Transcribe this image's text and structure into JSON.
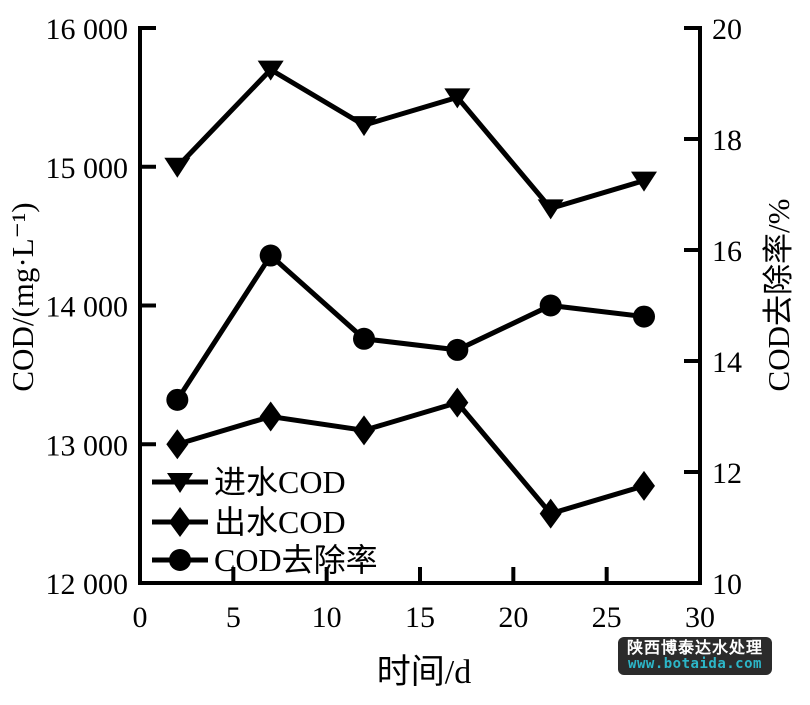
{
  "watermark": {
    "line1": "陕西博泰达水处理",
    "line2": "www.botaida.com",
    "bg_color": "#2b2b2b",
    "text_color": "#ffffff",
    "url_color": "#2cb6c8"
  },
  "chart_data": {
    "type": "line",
    "x": [
      2,
      7,
      12,
      17,
      22,
      27
    ],
    "series": [
      {
        "name": "进水COD",
        "axis": "left",
        "marker": "triangle-down",
        "values": [
          15000,
          15700,
          15300,
          15500,
          14700,
          14900
        ]
      },
      {
        "name": "出水COD",
        "axis": "left",
        "marker": "diamond",
        "values": [
          13000,
          13200,
          13100,
          13300,
          12500,
          12700
        ]
      },
      {
        "name": "COD去除率",
        "axis": "right",
        "marker": "circle",
        "values": [
          13.3,
          15.9,
          14.4,
          14.2,
          15.0,
          14.8
        ]
      }
    ],
    "xlabel": "时间/d",
    "ylabel_left": "COD/(mg·L⁻¹)",
    "ylabel_right": "COD去除率/%",
    "xlim": [
      0,
      30
    ],
    "x_ticks": [
      0,
      5,
      10,
      15,
      20,
      25,
      30
    ],
    "x_tick_labels": [
      "0",
      "5",
      "10",
      "15",
      "20",
      "25",
      "30"
    ],
    "ylim_left": [
      12000,
      16000
    ],
    "left_ticks": [
      16000,
      15000,
      14000,
      13000,
      12000
    ],
    "left_tick_labels": [
      "16 000",
      "15 000",
      "14 000",
      "13 000",
      "12 000"
    ],
    "ylim_right": [
      10,
      20
    ],
    "right_ticks": [
      20,
      18,
      16,
      14,
      12,
      10
    ],
    "right_tick_labels": [
      "20",
      "18",
      "16",
      "14",
      "12",
      "10"
    ],
    "legend": {
      "position": "lower-left-inside",
      "entries": [
        "进水COD",
        "出水COD",
        "COD去除率"
      ]
    },
    "line_color": "#000000",
    "grid": false
  }
}
